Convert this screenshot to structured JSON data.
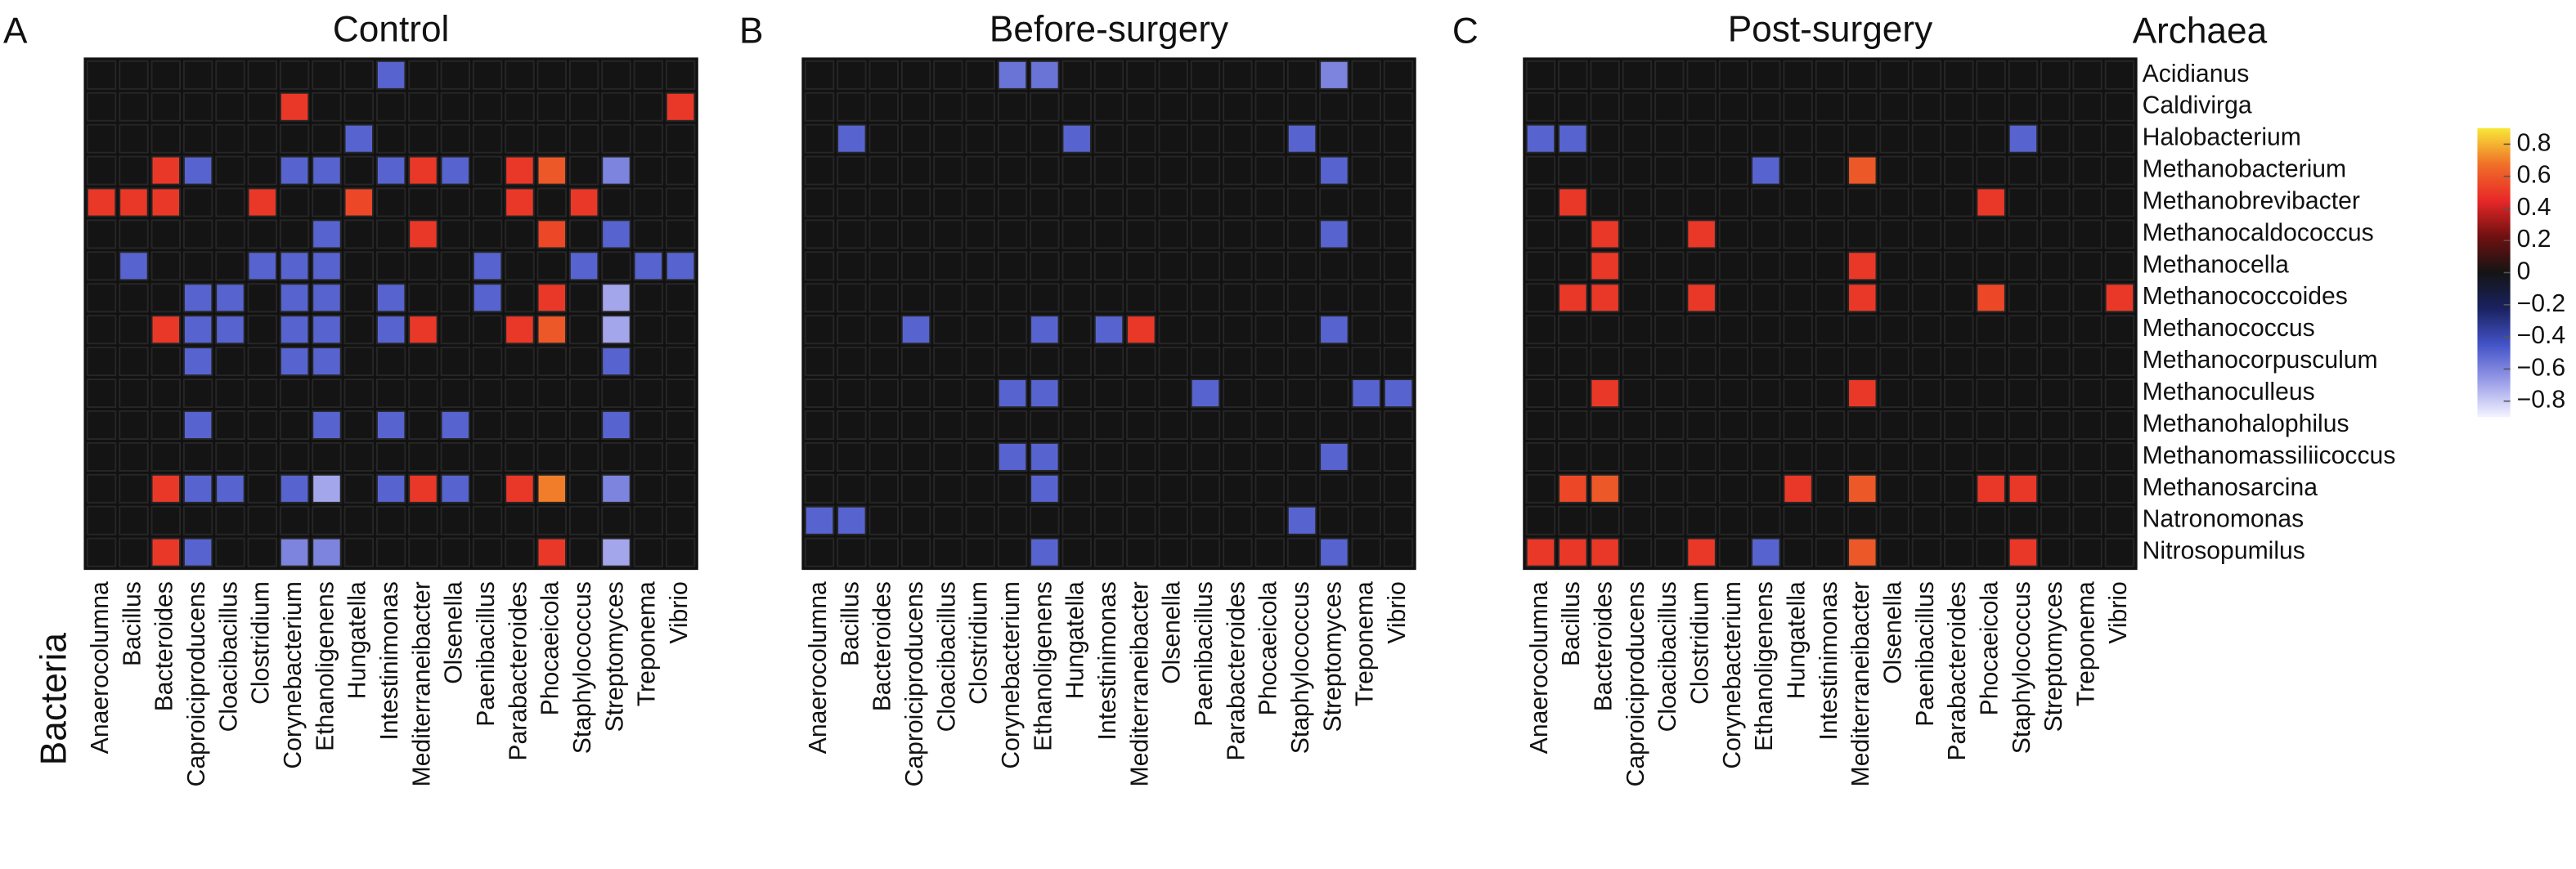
{
  "chart_data": [
    {
      "type": "heatmap",
      "panel": "A",
      "title": "Control",
      "x_label": "Bacteria",
      "x_categories": [
        "Anaerocolumna",
        "Bacillus",
        "Bacteroides",
        "Caproiciproducens",
        "Cloacibacillus",
        "Clostridium",
        "Corynebacterium",
        "Ethanoligenens",
        "Hungatella",
        "Intestinimonas",
        "Mediterraneibacter",
        "Olsenella",
        "Paenibacillus",
        "Parabacteroides",
        "Phocaeicola",
        "Staphylococcus",
        "Streptomyces",
        "Treponema",
        "Vibrio"
      ],
      "values": [
        [
          0,
          0,
          0,
          0,
          0,
          0,
          0,
          0,
          0,
          -0.5,
          0,
          0,
          0,
          0,
          0,
          0,
          0,
          0,
          0
        ],
        [
          0,
          0,
          0,
          0,
          0,
          0,
          0.5,
          0,
          0,
          0,
          0,
          0,
          0,
          0,
          0,
          0,
          0,
          0,
          0.5
        ],
        [
          0,
          0,
          0,
          0,
          0,
          0,
          0,
          0,
          -0.5,
          0,
          0,
          0,
          0,
          0,
          0,
          0,
          0,
          0,
          0
        ],
        [
          0,
          0,
          0.5,
          -0.5,
          0,
          0,
          -0.5,
          -0.5,
          0,
          -0.5,
          0.5,
          -0.5,
          0,
          0.5,
          0.6,
          0,
          -0.6,
          0,
          0
        ],
        [
          0.5,
          0.5,
          0.5,
          0,
          0,
          0.5,
          0,
          0,
          0.55,
          0,
          0,
          0,
          0,
          0.5,
          0,
          0.5,
          0,
          0,
          0
        ],
        [
          0,
          0,
          0,
          0,
          0,
          0,
          0,
          -0.5,
          0,
          0,
          0.5,
          0,
          0,
          0,
          0.55,
          0,
          -0.5,
          0,
          0
        ],
        [
          0,
          -0.5,
          0,
          0,
          0,
          -0.5,
          -0.5,
          -0.5,
          0,
          0,
          0,
          0,
          -0.5,
          0,
          0,
          -0.5,
          0,
          -0.5,
          -0.5
        ],
        [
          0,
          0,
          0,
          -0.5,
          -0.5,
          0,
          -0.5,
          -0.5,
          0,
          -0.5,
          0,
          0,
          -0.5,
          0,
          0.5,
          0,
          -0.7,
          0,
          0
        ],
        [
          0,
          0,
          0.5,
          -0.5,
          -0.5,
          0,
          -0.5,
          -0.5,
          0,
          -0.5,
          0.5,
          0,
          0,
          0.5,
          0.6,
          0,
          -0.7,
          0,
          0
        ],
        [
          0,
          0,
          0,
          -0.5,
          0,
          0,
          -0.5,
          -0.5,
          0,
          0,
          0,
          0,
          0,
          0,
          0,
          0,
          -0.5,
          0,
          0
        ],
        [
          0,
          0,
          0,
          0,
          0,
          0,
          0,
          0,
          0,
          0,
          0,
          0,
          0,
          0,
          0,
          0,
          0,
          0,
          0
        ],
        [
          0,
          0,
          0,
          -0.5,
          0,
          0,
          0,
          -0.5,
          0,
          -0.5,
          0,
          -0.5,
          0,
          0,
          0,
          0,
          -0.5,
          0,
          0
        ],
        [
          0,
          0,
          0,
          0,
          0,
          0,
          0,
          0,
          0,
          0,
          0,
          0,
          0,
          0,
          0,
          0,
          0,
          0,
          0
        ],
        [
          0,
          0,
          0.5,
          -0.5,
          -0.5,
          0,
          -0.5,
          -0.7,
          0,
          -0.5,
          0.5,
          -0.5,
          0,
          0.5,
          0.7,
          0,
          -0.6,
          0,
          0
        ],
        [
          0,
          0,
          0,
          0,
          0,
          0,
          0,
          0,
          0,
          0,
          0,
          0,
          0,
          0,
          0,
          0,
          0,
          0,
          0
        ],
        [
          0,
          0,
          0.5,
          -0.5,
          0,
          0,
          -0.6,
          -0.6,
          0,
          0,
          0,
          0,
          0,
          0,
          0.5,
          0,
          -0.7,
          0,
          0
        ]
      ]
    },
    {
      "type": "heatmap",
      "panel": "B",
      "title": "Before-surgery",
      "x_categories": [
        "Anaerocolumna",
        "Bacillus",
        "Bacteroides",
        "Caproiciproducens",
        "Cloacibacillus",
        "Clostridium",
        "Corynebacterium",
        "Ethanoligenens",
        "Hungatella",
        "Intestinimonas",
        "Mediterraneibacter",
        "Olsenella",
        "Paenibacillus",
        "Parabacteroides",
        "Phocaeicola",
        "Staphylococcus",
        "Streptomyces",
        "Treponema",
        "Vibrio"
      ],
      "values": [
        [
          0,
          0,
          0,
          0,
          0,
          0,
          -0.55,
          -0.55,
          0,
          0,
          0,
          0,
          0,
          0,
          0,
          0,
          -0.6,
          0,
          0
        ],
        [
          0,
          0,
          0,
          0,
          0,
          0,
          0,
          0,
          0,
          0,
          0,
          0,
          0,
          0,
          0,
          0,
          0,
          0,
          0
        ],
        [
          0,
          -0.5,
          0,
          0,
          0,
          0,
          0,
          0,
          -0.5,
          0,
          0,
          0,
          0,
          0,
          0,
          -0.5,
          0,
          0,
          0
        ],
        [
          0,
          0,
          0,
          0,
          0,
          0,
          0,
          0,
          0,
          0,
          0,
          0,
          0,
          0,
          0,
          0,
          -0.5,
          0,
          0
        ],
        [
          0,
          0,
          0,
          0,
          0,
          0,
          0,
          0,
          0,
          0,
          0,
          0,
          0,
          0,
          0,
          0,
          0,
          0,
          0
        ],
        [
          0,
          0,
          0,
          0,
          0,
          0,
          0,
          0,
          0,
          0,
          0,
          0,
          0,
          0,
          0,
          0,
          -0.5,
          0,
          0
        ],
        [
          0,
          0,
          0,
          0,
          0,
          0,
          0,
          0,
          0,
          0,
          0,
          0,
          0,
          0,
          0,
          0,
          0,
          0,
          0
        ],
        [
          0,
          0,
          0,
          0,
          0,
          0,
          0,
          0,
          0,
          0,
          0,
          0,
          0,
          0,
          0,
          0,
          0,
          0,
          0
        ],
        [
          0,
          0,
          0,
          -0.5,
          0,
          0,
          0,
          -0.5,
          0,
          -0.5,
          0.5,
          0,
          0,
          0,
          0,
          0,
          -0.5,
          0,
          0
        ],
        [
          0,
          0,
          0,
          0,
          0,
          0,
          0,
          0,
          0,
          0,
          0,
          0,
          0,
          0,
          0,
          0,
          0,
          0,
          0
        ],
        [
          0,
          0,
          0,
          0,
          0,
          0,
          -0.5,
          -0.5,
          0,
          0,
          0,
          0,
          -0.5,
          0,
          0,
          0,
          0,
          -0.5,
          -0.5
        ],
        [
          0,
          0,
          0,
          0,
          0,
          0,
          0,
          0,
          0,
          0,
          0,
          0,
          0,
          0,
          0,
          0,
          0,
          0,
          0
        ],
        [
          0,
          0,
          0,
          0,
          0,
          0,
          -0.5,
          -0.5,
          0,
          0,
          0,
          0,
          0,
          0,
          0,
          0,
          -0.5,
          0,
          0
        ],
        [
          0,
          0,
          0,
          0,
          0,
          0,
          0,
          -0.5,
          0,
          0,
          0,
          0,
          0,
          0,
          0,
          0,
          0,
          0,
          0
        ],
        [
          -0.5,
          -0.5,
          0,
          0,
          0,
          0,
          0,
          0,
          0,
          0,
          0,
          0,
          0,
          0,
          0,
          -0.5,
          0,
          0,
          0
        ],
        [
          0,
          0,
          0,
          0,
          0,
          0,
          0,
          -0.5,
          0,
          0,
          0,
          0,
          0,
          0,
          0,
          0,
          -0.5,
          0,
          0
        ]
      ]
    },
    {
      "type": "heatmap",
      "panel": "C",
      "title": "Post-surgery",
      "y_label": "Archaea",
      "x_categories": [
        "Anaerocolumna",
        "Bacillus",
        "Bacteroides",
        "Caproiciproducens",
        "Cloacibacillus",
        "Clostridium",
        "Corynebacterium",
        "Ethanoligenens",
        "Hungatella",
        "Intestinimonas",
        "Mediterraneibacter",
        "Olsenella",
        "Paenibacillus",
        "Parabacteroides",
        "Phocaeicola",
        "Staphylococcus",
        "Streptomyces",
        "Treponema",
        "Vibrio"
      ],
      "y_categories": [
        "Acidianus",
        "Caldivirga",
        "Halobacterium",
        "Methanobacterium",
        "Methanobrevibacter",
        "Methanocaldococcus",
        "Methanocella",
        "Methanococcoides",
        "Methanococcus",
        "Methanocorpusculum",
        "Methanoculleus",
        "Methanohalophilus",
        "Methanomassiliicoccus",
        "Methanosarcina",
        "Natronomonas",
        "Nitrosopumilus"
      ],
      "values": [
        [
          0,
          0,
          0,
          0,
          0,
          0,
          0,
          0,
          0,
          0,
          0,
          0,
          0,
          0,
          0,
          0,
          0,
          0,
          0
        ],
        [
          0,
          0,
          0,
          0,
          0,
          0,
          0,
          0,
          0,
          0,
          0,
          0,
          0,
          0,
          0,
          0,
          0,
          0,
          0
        ],
        [
          -0.5,
          -0.5,
          0,
          0,
          0,
          0,
          0,
          0,
          0,
          0,
          0,
          0,
          0,
          0,
          0,
          -0.5,
          0,
          0,
          0
        ],
        [
          0,
          0,
          0,
          0,
          0,
          0,
          0,
          -0.5,
          0,
          0,
          0.6,
          0,
          0,
          0,
          0,
          0,
          0,
          0,
          0
        ],
        [
          0,
          0.5,
          0,
          0,
          0,
          0,
          0,
          0,
          0,
          0,
          0,
          0,
          0,
          0,
          0.5,
          0,
          0,
          0,
          0
        ],
        [
          0,
          0,
          0.5,
          0,
          0,
          0.5,
          0,
          0,
          0,
          0,
          0,
          0,
          0,
          0,
          0,
          0,
          0,
          0,
          0
        ],
        [
          0,
          0,
          0.5,
          0,
          0,
          0,
          0,
          0,
          0,
          0,
          0.5,
          0,
          0,
          0,
          0,
          0,
          0,
          0,
          0
        ],
        [
          0,
          0.5,
          0.5,
          0,
          0,
          0.5,
          0,
          0,
          0,
          0,
          0.5,
          0,
          0,
          0,
          0.55,
          0,
          0,
          0,
          0.5
        ],
        [
          0,
          0,
          0,
          0,
          0,
          0,
          0,
          0,
          0,
          0,
          0,
          0,
          0,
          0,
          0,
          0,
          0,
          0,
          0
        ],
        [
          0,
          0,
          0,
          0,
          0,
          0,
          0,
          0,
          0,
          0,
          0,
          0,
          0,
          0,
          0,
          0,
          0,
          0,
          0
        ],
        [
          0,
          0,
          0.5,
          0,
          0,
          0,
          0,
          0,
          0,
          0,
          0.5,
          0,
          0,
          0,
          0,
          0,
          0,
          0,
          0
        ],
        [
          0,
          0,
          0,
          0,
          0,
          0,
          0,
          0,
          0,
          0,
          0,
          0,
          0,
          0,
          0,
          0,
          0,
          0,
          0
        ],
        [
          0,
          0,
          0,
          0,
          0,
          0,
          0,
          0,
          0,
          0,
          0,
          0,
          0,
          0,
          0,
          0,
          0,
          0,
          0
        ],
        [
          0,
          0.55,
          0.6,
          0,
          0,
          0,
          0,
          0,
          0.5,
          0,
          0.6,
          0,
          0,
          0,
          0.5,
          0.5,
          0,
          0,
          0
        ],
        [
          0,
          0,
          0,
          0,
          0,
          0,
          0,
          0,
          0,
          0,
          0,
          0,
          0,
          0,
          0,
          0,
          0,
          0,
          0
        ],
        [
          0.5,
          0.5,
          0.5,
          0,
          0,
          0.5,
          0,
          -0.5,
          0,
          0,
          0.6,
          0,
          0,
          0,
          0,
          0.5,
          0,
          0,
          0
        ]
      ],
      "clim": [
        -0.9,
        0.9
      ],
      "colormap": [
        "#f4f4ff",
        "#9a9ce8",
        "#4454c8",
        "#1a2260",
        "#141414",
        "#701010",
        "#e82828",
        "#f07028",
        "#f8e838"
      ],
      "cticks": [
        0.8,
        0.6,
        0.4,
        0.2,
        0,
        {
          "value": -0.2,
          "label": "−0.2"
        },
        {
          "value": -0.4,
          "label": "−0.4"
        },
        {
          "value": -0.6,
          "label": "−0.6"
        },
        {
          "value": -0.8,
          "label": "−0.8"
        }
      ]
    }
  ]
}
